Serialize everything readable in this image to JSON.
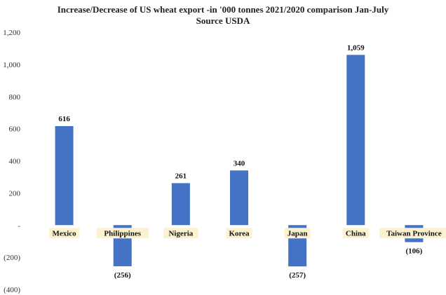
{
  "chart_data": {
    "type": "bar",
    "title_line1": "Increase/Decrease of US wheat export -in '000 tonnes 2021/2020 comparison Jan-July",
    "title_line2": "Source USDA",
    "categories": [
      "Mexico",
      "Philippines",
      "Nigeria",
      "Korea",
      "Japan",
      "China",
      "Taiwan Province"
    ],
    "values": [
      616,
      -256,
      261,
      340,
      -257,
      1059,
      -106
    ],
    "data_labels": [
      "616",
      "(256)",
      "261",
      "340",
      "(257)",
      "1,059",
      "(106)"
    ],
    "ylim": [
      -400,
      1200
    ],
    "yticks": [
      1200,
      1000,
      800,
      600,
      400,
      200,
      0,
      -200,
      -400
    ],
    "ytick_labels": [
      "1,200",
      "1,000",
      "800",
      "600",
      "400",
      "200",
      "-",
      "(200)",
      "(400)"
    ],
    "xlabel": "",
    "ylabel": "",
    "bar_color": "#4472c4",
    "label_bg_color": "#fdf2d0"
  }
}
